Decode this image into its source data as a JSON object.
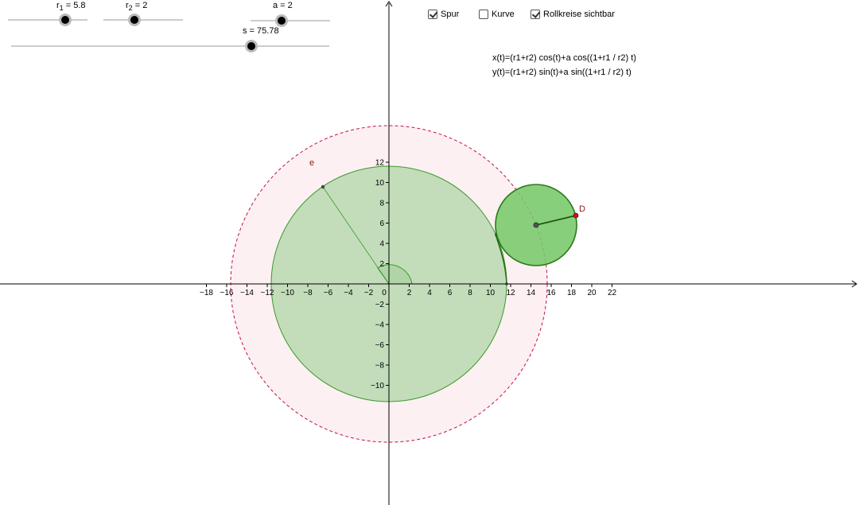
{
  "sliders": [
    {
      "id": "r1",
      "name": "r",
      "sub": "1",
      "value_text": " = 5.8"
    },
    {
      "id": "r2",
      "name": "r",
      "sub": "2",
      "value_text": " = 2"
    },
    {
      "id": "a",
      "name": "a",
      "sub": "",
      "value_text": " = 2"
    },
    {
      "id": "s",
      "name": "s",
      "sub": "",
      "value_text": " = 75.78"
    }
  ],
  "checkboxes": [
    {
      "label": "Spur",
      "checked": true
    },
    {
      "label": "Kurve",
      "checked": false
    },
    {
      "label": "Rollkreise sichtbar",
      "checked": true
    }
  ],
  "equations": {
    "x": "x(t)=(r1+r2) cos(t)+a cos((1+r1 / r2) t)",
    "y": "y(t)=(r1+r2) sin(t)+a sin((1+r1 / r2) t)"
  },
  "point_labels": {
    "circle": "e",
    "point": "D"
  },
  "parameters": {
    "r1": 5.8,
    "r2": 2,
    "a": 2,
    "s": 75.78
  },
  "x_ticks": [
    "−18",
    "−16",
    "−14",
    "−12",
    "−10",
    "−8",
    "−6",
    "−4",
    "−2",
    "0",
    "2",
    "4",
    "6",
    "8",
    "10",
    "12",
    "14",
    "16",
    "18",
    "20",
    "22"
  ],
  "y_ticks": [
    "12",
    "10",
    "8",
    "6",
    "4",
    "2",
    "−2",
    "−4",
    "−6",
    "−8",
    "−10"
  ],
  "colors": {
    "big_circle_fill": "#c3ddbb",
    "big_circle_stroke": "#3a9a2a",
    "small_circle_fill": "#77c86a",
    "small_circle_stroke": "#2a7a1a",
    "outer_circle_fill": "#fcf0f2",
    "outer_circle_stroke": "#c8104a",
    "point_red": "#c8102e",
    "label_red": "#8b1a1a"
  }
}
